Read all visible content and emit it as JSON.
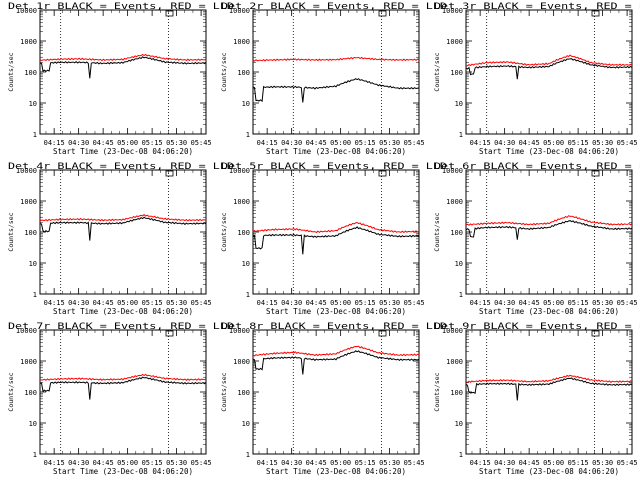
{
  "style": {
    "events_color": "#000000",
    "lld_color": "#ff0000",
    "background": "#ffffff"
  },
  "panel_template": {
    "title_suffix": " BLACK = Events, RED = LLD",
    "xlabel": "Start Time (23-Dec-08 04:06:20)",
    "ylabel": "Counts/sec",
    "x_ticks": [
      "04:15",
      "04:30",
      "04:45",
      "05:00",
      "05:15",
      "05:30",
      "05:45"
    ],
    "y_ticks": [
      "1",
      "10",
      "100",
      "1000",
      "10000"
    ]
  },
  "chart_data": [
    {
      "type": "line",
      "title": "Det 1r BLACK = Events, RED = LLD",
      "detector": "Det 1r",
      "xlabel": "Start Time (23-Dec-08 04:06:20)",
      "ylabel": "Counts/sec",
      "y_scale": "log",
      "ylim": [
        1,
        10000
      ],
      "xlim": [
        "04:06:20",
        "05:48:00"
      ],
      "x_ticks": [
        "04:15",
        "04:30",
        "04:45",
        "05:00",
        "05:15",
        "05:30",
        "05:45"
      ],
      "y_ticks": [
        1,
        10,
        100,
        1000,
        10000
      ],
      "markers": [
        "04:19",
        "05:25"
      ],
      "grid": false,
      "series": [
        {
          "name": "Events",
          "color": "#000000",
          "baseline": [
            190,
            205,
            205,
            190,
            200,
            300,
            210,
            190,
            195
          ],
          "dropouts": [
            {
              "start": "04:08",
              "end": "04:12",
              "value": 110
            },
            {
              "start": "04:36",
              "end": "04:37",
              "value": 60
            }
          ]
        },
        {
          "name": "LLD",
          "color": "#ff0000",
          "baseline": [
            240,
            260,
            265,
            245,
            255,
            360,
            270,
            245,
            250
          ],
          "dropouts": []
        }
      ]
    },
    {
      "type": "line",
      "title": "Det 2r BLACK = Events, RED = LLD",
      "detector": "Det 2r",
      "xlabel": "Start Time (23-Dec-08 04:06:20)",
      "ylabel": "Counts/sec",
      "y_scale": "log",
      "ylim": [
        1,
        10000
      ],
      "xlim": [
        "04:06:20",
        "05:48:00"
      ],
      "x_ticks": [
        "04:15",
        "04:30",
        "04:45",
        "05:00",
        "05:15",
        "05:30",
        "05:45"
      ],
      "y_ticks": [
        1,
        10,
        100,
        1000,
        10000
      ],
      "markers": [
        "04:31",
        "05:25"
      ],
      "grid": false,
      "series": [
        {
          "name": "Events",
          "color": "#000000",
          "baseline": [
            32,
            33,
            33,
            30,
            35,
            60,
            38,
            30,
            30
          ],
          "dropouts": [
            {
              "start": "04:08",
              "end": "04:12",
              "value": 12
            },
            {
              "start": "04:36",
              "end": "04:37",
              "value": 10
            }
          ]
        },
        {
          "name": "LLD",
          "color": "#ff0000",
          "baseline": [
            235,
            245,
            255,
            245,
            250,
            290,
            255,
            245,
            250
          ],
          "dropouts": []
        }
      ]
    },
    {
      "type": "line",
      "title": "Det 3r BLACK = Events, RED = LLD",
      "detector": "Det 3r",
      "xlabel": "Start Time (23-Dec-08 04:06:20)",
      "ylabel": "Counts/sec",
      "y_scale": "log",
      "ylim": [
        1,
        10000
      ],
      "xlim": [
        "04:06:20",
        "05:48:00"
      ],
      "x_ticks": [
        "04:15",
        "04:30",
        "04:45",
        "05:00",
        "05:15",
        "05:30",
        "05:45"
      ],
      "y_ticks": [
        1,
        10,
        100,
        1000,
        10000
      ],
      "markers": [
        "04:19",
        "05:25"
      ],
      "grid": false,
      "series": [
        {
          "name": "Events",
          "color": "#000000",
          "baseline": [
            130,
            150,
            155,
            140,
            150,
            270,
            170,
            140,
            145
          ],
          "dropouts": [
            {
              "start": "04:09",
              "end": "04:11",
              "value": 85
            },
            {
              "start": "04:37",
              "end": "04:38",
              "value": 60
            }
          ]
        },
        {
          "name": "LLD",
          "color": "#ff0000",
          "baseline": [
            160,
            200,
            210,
            170,
            185,
            340,
            200,
            170,
            170
          ],
          "dropouts": []
        }
      ]
    },
    {
      "type": "line",
      "title": "Det 4r BLACK = Events, RED = LLD",
      "detector": "Det 4r",
      "xlabel": "Start Time (23-Dec-08 04:06:20)",
      "ylabel": "Counts/sec",
      "y_scale": "log",
      "ylim": [
        1,
        10000
      ],
      "xlim": [
        "04:06:20",
        "05:48:00"
      ],
      "x_ticks": [
        "04:15",
        "04:30",
        "04:45",
        "05:00",
        "05:15",
        "05:30",
        "05:45"
      ],
      "y_ticks": [
        1,
        10,
        100,
        1000,
        10000
      ],
      "markers": [
        "04:19",
        "05:25"
      ],
      "grid": false,
      "series": [
        {
          "name": "Events",
          "color": "#000000",
          "baseline": [
            185,
            200,
            200,
            185,
            195,
            290,
            205,
            185,
            190
          ],
          "dropouts": [
            {
              "start": "04:08",
              "end": "04:12",
              "value": 105
            },
            {
              "start": "04:36",
              "end": "04:37",
              "value": 55
            }
          ]
        },
        {
          "name": "LLD",
          "color": "#ff0000",
          "baseline": [
            235,
            255,
            260,
            240,
            250,
            350,
            265,
            240,
            245
          ],
          "dropouts": []
        }
      ]
    },
    {
      "type": "line",
      "title": "Det 5r BLACK = Events, RED = LLD",
      "detector": "Det 5r",
      "xlabel": "Start Time (23-Dec-08 04:06:20)",
      "ylabel": "Counts/sec",
      "y_scale": "log",
      "ylim": [
        1,
        10000
      ],
      "xlim": [
        "04:06:20",
        "05:48:00"
      ],
      "x_ticks": [
        "04:15",
        "04:30",
        "04:45",
        "05:00",
        "05:15",
        "05:30",
        "05:45"
      ],
      "y_ticks": [
        1,
        10,
        100,
        1000,
        10000
      ],
      "markers": [
        "04:31",
        "05:25"
      ],
      "grid": false,
      "series": [
        {
          "name": "Events",
          "color": "#000000",
          "baseline": [
            75,
            80,
            80,
            70,
            75,
            140,
            85,
            72,
            75
          ],
          "dropouts": [
            {
              "start": "04:08",
              "end": "04:12",
              "value": 30
            },
            {
              "start": "04:36",
              "end": "04:37",
              "value": 20
            }
          ]
        },
        {
          "name": "LLD",
          "color": "#ff0000",
          "baseline": [
            105,
            120,
            125,
            100,
            110,
            200,
            120,
            100,
            105
          ],
          "dropouts": []
        }
      ]
    },
    {
      "type": "line",
      "title": "Det 6r BLACK = Events, RED = LLD",
      "detector": "Det 6r",
      "xlabel": "Start Time (23-Dec-08 04:06:20)",
      "ylabel": "Counts/sec",
      "y_scale": "log",
      "ylim": [
        1,
        10000
      ],
      "xlim": [
        "04:06:20",
        "05:48:00"
      ],
      "x_ticks": [
        "04:15",
        "04:30",
        "04:45",
        "05:00",
        "05:15",
        "05:30",
        "05:45"
      ],
      "y_ticks": [
        1,
        10,
        100,
        1000,
        10000
      ],
      "markers": [
        "04:19",
        "05:25"
      ],
      "grid": false,
      "series": [
        {
          "name": "Events",
          "color": "#000000",
          "baseline": [
            120,
            140,
            145,
            125,
            140,
            230,
            155,
            125,
            130
          ],
          "dropouts": [
            {
              "start": "04:09",
              "end": "04:11",
              "value": 70
            },
            {
              "start": "04:37",
              "end": "04:38",
              "value": 55
            }
          ]
        },
        {
          "name": "LLD",
          "color": "#ff0000",
          "baseline": [
            170,
            190,
            200,
            175,
            190,
            330,
            210,
            175,
            180
          ],
          "dropouts": []
        }
      ]
    },
    {
      "type": "line",
      "title": "Det 7r BLACK = Events, RED = LLD",
      "detector": "Det 7r",
      "xlabel": "Start Time (23-Dec-08 04:06:20)",
      "ylabel": "Counts/sec",
      "y_scale": "log",
      "ylim": [
        1,
        10000
      ],
      "xlim": [
        "04:06:20",
        "05:48:00"
      ],
      "x_ticks": [
        "04:15",
        "04:30",
        "04:45",
        "05:00",
        "05:15",
        "05:30",
        "05:45"
      ],
      "y_ticks": [
        1,
        10,
        100,
        1000,
        10000
      ],
      "markers": [
        "04:19",
        "05:25"
      ],
      "grid": false,
      "series": [
        {
          "name": "Events",
          "color": "#000000",
          "baseline": [
            190,
            205,
            205,
            190,
            200,
            295,
            210,
            190,
            195
          ],
          "dropouts": [
            {
              "start": "04:08",
              "end": "04:12",
              "value": 110
            },
            {
              "start": "04:36",
              "end": "04:37",
              "value": 55
            }
          ]
        },
        {
          "name": "LLD",
          "color": "#ff0000",
          "baseline": [
            245,
            265,
            270,
            250,
            260,
            360,
            275,
            250,
            255
          ],
          "dropouts": []
        }
      ]
    },
    {
      "type": "line",
      "title": "Det 8r BLACK = Events, RED = LLD",
      "detector": "Det 8r",
      "xlabel": "Start Time (23-Dec-08 04:06:20)",
      "ylabel": "Counts/sec",
      "y_scale": "log",
      "ylim": [
        1,
        10000
      ],
      "xlim": [
        "04:06:20",
        "05:48:00"
      ],
      "x_ticks": [
        "04:15",
        "04:30",
        "04:45",
        "05:00",
        "05:15",
        "05:30",
        "05:45"
      ],
      "y_ticks": [
        1,
        10,
        100,
        1000,
        10000
      ],
      "markers": [
        "04:31",
        "05:25"
      ],
      "grid": false,
      "series": [
        {
          "name": "Events",
          "color": "#000000",
          "baseline": [
            1100,
            1250,
            1300,
            1100,
            1150,
            2100,
            1300,
            1100,
            1100
          ],
          "dropouts": [
            {
              "start": "04:08",
              "end": "04:12",
              "value": 550
            },
            {
              "start": "04:36",
              "end": "04:37",
              "value": 350
            }
          ]
        },
        {
          "name": "LLD",
          "color": "#ff0000",
          "baseline": [
            1500,
            1750,
            1900,
            1550,
            1700,
            3000,
            1850,
            1550,
            1600
          ],
          "dropouts": []
        }
      ]
    },
    {
      "type": "line",
      "title": "Det 9r BLACK = Events, RED = LLD",
      "detector": "Det 9r",
      "xlabel": "Start Time (23-Dec-08 04:06:20)",
      "ylabel": "Counts/sec",
      "y_scale": "log",
      "ylim": [
        1,
        10000
      ],
      "xlim": [
        "04:06:20",
        "05:48:00"
      ],
      "x_ticks": [
        "04:15",
        "04:30",
        "04:45",
        "05:00",
        "05:15",
        "05:30",
        "05:45"
      ],
      "y_ticks": [
        1,
        10,
        100,
        1000,
        10000
      ],
      "markers": [
        "04:19",
        "05:25"
      ],
      "grid": false,
      "series": [
        {
          "name": "Events",
          "color": "#000000",
          "baseline": [
            170,
            185,
            185,
            170,
            180,
            280,
            190,
            170,
            175
          ],
          "dropouts": [
            {
              "start": "04:08",
              "end": "04:12",
              "value": 95
            },
            {
              "start": "04:37",
              "end": "04:38",
              "value": 55
            }
          ]
        },
        {
          "name": "LLD",
          "color": "#ff0000",
          "baseline": [
            210,
            235,
            240,
            215,
            230,
            340,
            245,
            215,
            220
          ],
          "dropouts": []
        }
      ]
    }
  ]
}
